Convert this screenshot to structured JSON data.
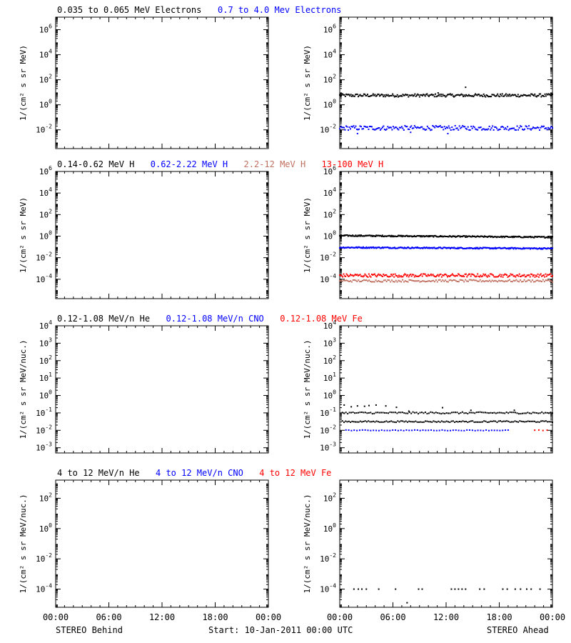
{
  "chart_data": [
    {
      "type": "scatter",
      "panel": "electrons-behind",
      "title_parts": [
        {
          "text": "0.035 to 0.065 MeV Electrons",
          "color": "#000000"
        },
        {
          "text": "0.7 to 4.0 Mev Electrons",
          "color": "#0000ff"
        }
      ],
      "ylabel": "1/(cm² s sr MeV)",
      "yscale": "log",
      "ylim_exp": [
        -3.5,
        7
      ],
      "yticks_exp": [
        -2,
        0,
        2,
        4,
        6
      ],
      "xlim_hours": [
        0,
        24
      ],
      "series": []
    },
    {
      "type": "scatter",
      "panel": "electrons-ahead",
      "ylabel": "1/(cm² s sr MeV)",
      "yscale": "log",
      "ylim_exp": [
        -3.5,
        7
      ],
      "yticks_exp": [
        -2,
        0,
        2,
        4,
        6
      ],
      "xlim_hours": [
        0,
        24
      ],
      "series": [
        {
          "color": "#000000",
          "level_exp": 0.75,
          "jitter_exp": 0.12,
          "x_start_hour": 0.0,
          "x_end_hour": 24,
          "count": 230,
          "outliers": [
            [
              14.2,
              1.4
            ],
            [
              11.1,
              0.95
            ]
          ]
        },
        {
          "color": "#0000ff",
          "level_exp": -1.85,
          "jitter_exp": 0.18,
          "x_start_hour": 0.0,
          "x_end_hour": 24,
          "count": 200,
          "outliers": [
            [
              2.0,
              -2.3
            ],
            [
              8.0,
              -2.2
            ],
            [
              12.2,
              -2.3
            ]
          ]
        }
      ]
    },
    {
      "type": "scatter",
      "panel": "protons-behind",
      "title_parts": [
        {
          "text": "0.14-0.62 MeV H",
          "color": "#000000"
        },
        {
          "text": "0.62-2.22 MeV H",
          "color": "#0000ff"
        },
        {
          "text": "2.2-12 MeV H",
          "color": "#c07060"
        },
        {
          "text": "13-100 MeV H",
          "color": "#ff0000"
        }
      ],
      "ylabel": "1/(cm² s sr MeV)",
      "yscale": "log",
      "ylim_exp": [
        -5.8,
        6
      ],
      "yticks_exp": [
        -4,
        -2,
        0,
        2,
        4,
        6
      ],
      "xlim_hours": [
        0,
        24
      ],
      "series": []
    },
    {
      "type": "scatter",
      "panel": "protons-ahead",
      "ylabel": "1/(cm² s sr MeV)",
      "yscale": "log",
      "ylim_exp": [
        -5.8,
        6
      ],
      "yticks_exp": [
        -4,
        -2,
        0,
        2,
        4,
        6
      ],
      "xlim_hours": [
        0,
        24
      ],
      "series": [
        {
          "color": "#000000",
          "level_exp": 0.05,
          "level_end_exp": -0.1,
          "jitter_exp": 0.06,
          "x_start_hour": 0.0,
          "x_end_hour": 24,
          "count": 280,
          "outliers": []
        },
        {
          "color": "#0000ff",
          "level_exp": -1.05,
          "level_end_exp": -1.15,
          "jitter_exp": 0.06,
          "x_start_hour": 0.0,
          "x_end_hour": 24,
          "count": 280,
          "outliers": []
        },
        {
          "color": "#ff0000",
          "level_exp": -3.65,
          "jitter_exp": 0.15,
          "x_start_hour": 0.0,
          "x_end_hour": 24,
          "count": 220,
          "outliers": []
        },
        {
          "color": "#c07060",
          "level_exp": -4.15,
          "jitter_exp": 0.1,
          "x_start_hour": 0.0,
          "x_end_hour": 24,
          "count": 160,
          "outliers": []
        }
      ]
    },
    {
      "type": "scatter",
      "panel": "heavy-low-behind",
      "title_parts": [
        {
          "text": "0.12-1.08 MeV/n He",
          "color": "#000000"
        },
        {
          "text": "0.12-1.08 MeV/n CNO",
          "color": "#0000ff"
        },
        {
          "text": "0.12-1.08 MeV Fe",
          "color": "#ff0000"
        }
      ],
      "ylabel": "1/(cm² s sr MeV/nuc.)",
      "yscale": "log",
      "ylim_exp": [
        -3.3,
        4
      ],
      "yticks_exp": [
        -3,
        -2,
        -1,
        0,
        1,
        2,
        3,
        4
      ],
      "xlim_hours": [
        0,
        24
      ],
      "series": []
    },
    {
      "type": "scatter",
      "panel": "heavy-low-ahead",
      "ylabel": "1/(cm² s sr MeV/nuc.)",
      "yscale": "log",
      "ylim_exp": [
        -3.3,
        4
      ],
      "yticks_exp": [
        -3,
        -2,
        -1,
        0,
        1,
        2,
        3,
        4
      ],
      "xlim_hours": [
        0,
        24
      ],
      "series": [
        {
          "color": "#000000",
          "level_exp": -1.0,
          "jitter_exp": 0.05,
          "x_start_hour": 0.3,
          "x_end_hour": 24,
          "count": 120,
          "outliers": [
            [
              0.5,
              -0.55
            ],
            [
              1.3,
              -0.65
            ],
            [
              2.0,
              -0.6
            ],
            [
              2.8,
              -0.62
            ],
            [
              3.3,
              -0.58
            ],
            [
              4.1,
              -0.55
            ],
            [
              5.2,
              -0.6
            ],
            [
              6.4,
              -0.68
            ],
            [
              7.8,
              -0.9
            ],
            [
              11.6,
              -0.7
            ],
            [
              14.8,
              -0.85
            ],
            [
              19.7,
              -0.85
            ]
          ]
        },
        {
          "color": "#000000",
          "level_exp": -1.5,
          "jitter_exp": 0.04,
          "x_start_hour": 0.3,
          "x_end_hour": 24,
          "count": 130,
          "outliers": []
        },
        {
          "color": "#0000ff",
          "level_exp": -2.0,
          "jitter_exp": 0.02,
          "x_start_hour": 0.7,
          "x_end_hour": 19.0,
          "count": 60,
          "outliers": []
        },
        {
          "color": "#ff0000",
          "level_exp": -2.0,
          "jitter_exp": 0.02,
          "x_start_hour": 22.0,
          "x_end_hour": 23.4,
          "count": 4,
          "outliers": []
        }
      ]
    },
    {
      "type": "scatter",
      "panel": "heavy-high-behind",
      "title_parts": [
        {
          "text": "4 to 12 MeV/n He",
          "color": "#000000"
        },
        {
          "text": "4 to 12 MeV/n CNO",
          "color": "#0000ff"
        },
        {
          "text": "4 to 12 MeV Fe",
          "color": "#ff0000"
        }
      ],
      "ylabel": "1/(cm² s sr MeV/nuc.)",
      "yscale": "log",
      "ylim_exp": [
        -5.2,
        3.2
      ],
      "yticks_exp": [
        -4,
        -2,
        0,
        2
      ],
      "xlim_hours": [
        0,
        24
      ],
      "series": []
    },
    {
      "type": "scatter",
      "panel": "heavy-high-ahead",
      "ylabel": "1/(cm² s sr MeV/nuc.)",
      "yscale": "log",
      "ylim_exp": [
        -5.2,
        3.2
      ],
      "yticks_exp": [
        -4,
        -2,
        0,
        2
      ],
      "xlim_hours": [
        0,
        24
      ],
      "series": [
        {
          "color": "#000000",
          "level_exp": -4.0,
          "jitter_exp": 0.0,
          "x_start_hour": 1.5,
          "x_end_hour": 23.0,
          "count": 0,
          "outliers": [
            [
              1.6,
              -4.0
            ],
            [
              2.1,
              -4.0
            ],
            [
              2.5,
              -4.0
            ],
            [
              3.0,
              -4.0
            ],
            [
              4.4,
              -4.0
            ],
            [
              6.3,
              -4.0
            ],
            [
              8.9,
              -4.0
            ],
            [
              9.3,
              -4.0
            ],
            [
              12.6,
              -4.0
            ],
            [
              13.0,
              -4.0
            ],
            [
              13.4,
              -4.0
            ],
            [
              13.8,
              -4.0
            ],
            [
              14.2,
              -4.0
            ],
            [
              15.8,
              -4.0
            ],
            [
              16.3,
              -4.0
            ],
            [
              18.4,
              -4.0
            ],
            [
              18.9,
              -4.0
            ],
            [
              19.8,
              -4.0
            ],
            [
              20.4,
              -4.0
            ],
            [
              21.1,
              -4.0
            ],
            [
              21.6,
              -4.0
            ],
            [
              22.6,
              -4.0
            ],
            [
              7.6,
              -4.9
            ]
          ]
        }
      ]
    }
  ],
  "xaxis": {
    "tick_labels": [
      "00:00",
      "06:00",
      "12:00",
      "18:00",
      "00:00"
    ]
  },
  "footer": {
    "left": "STEREO Behind",
    "center": "Start: 10-Jan-2011 00:00 UTC",
    "right": "STEREO Ahead"
  },
  "colors": {
    "black": "#000000",
    "blue": "#0000ff",
    "brown": "#c07060",
    "red": "#ff0000"
  }
}
